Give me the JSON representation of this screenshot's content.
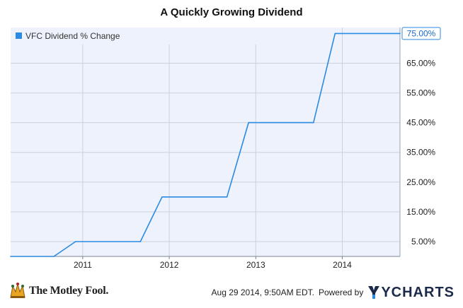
{
  "chart_data": {
    "type": "line",
    "title": "A Quickly Growing Dividend",
    "xlabel": "",
    "ylabel": "",
    "x_ticks": [
      "2011",
      "2012",
      "2013",
      "2014"
    ],
    "y_ticks": [
      "5.00%",
      "15.00%",
      "25.00%",
      "35.00%",
      "45.00%",
      "55.00%",
      "65.00%"
    ],
    "ylim": [
      0,
      77
    ],
    "xlim": [
      "2010-03",
      "2014-09"
    ],
    "grid": true,
    "legend_position": "top-left",
    "series": [
      {
        "name": "VFC Dividend % Change",
        "color": "#2b8ae2",
        "last_value_label": "75.00%",
        "points": [
          {
            "x": "2010-03",
            "y": 0
          },
          {
            "x": "2010-09",
            "y": 0
          },
          {
            "x": "2010-12",
            "y": 5
          },
          {
            "x": "2011-09",
            "y": 5
          },
          {
            "x": "2011-12",
            "y": 20
          },
          {
            "x": "2012-09",
            "y": 20
          },
          {
            "x": "2012-12",
            "y": 45
          },
          {
            "x": "2013-09",
            "y": 45
          },
          {
            "x": "2013-12",
            "y": 75
          },
          {
            "x": "2014-09",
            "y": 75
          }
        ]
      }
    ]
  },
  "footer": {
    "brand": "The Motley Fool.",
    "timestamp": "Aug 29 2014, 9:50AM EDT.",
    "powered_by": "Powered by",
    "provider": "YCHARTS"
  },
  "colors": {
    "plot_background": "#eef2fc",
    "grid": "#cbd1dc",
    "line": "#2b8ae2",
    "ycharts_logo": "#1b2a4a",
    "fool_logo": "#e8a623"
  }
}
